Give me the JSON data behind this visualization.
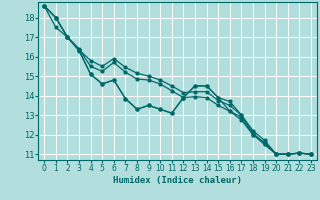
{
  "xlabel": "Humidex (Indice chaleur)",
  "background_color": "#b2dede",
  "grid_color": "#ffffff",
  "line_color": "#006868",
  "xlim": [
    -0.5,
    23.5
  ],
  "ylim": [
    10.7,
    18.8
  ],
  "xticks": [
    0,
    1,
    2,
    3,
    4,
    5,
    6,
    7,
    8,
    9,
    10,
    11,
    12,
    13,
    14,
    15,
    16,
    17,
    18,
    19,
    20,
    21,
    22,
    23
  ],
  "yticks": [
    11,
    12,
    13,
    14,
    15,
    16,
    17,
    18
  ],
  "line1_x": [
    0,
    1,
    2,
    3,
    4,
    5,
    6,
    7,
    8,
    9,
    10,
    11,
    12,
    13,
    14,
    15,
    16,
    17,
    18,
    19,
    20,
    21,
    22,
    23
  ],
  "line1_y": [
    18.6,
    18.0,
    17.0,
    16.35,
    15.1,
    14.6,
    14.8,
    13.85,
    13.3,
    13.5,
    13.3,
    13.1,
    13.9,
    14.5,
    14.5,
    13.9,
    13.7,
    13.0,
    12.1,
    11.5,
    11.0,
    11.0,
    11.05,
    11.0
  ],
  "line2_x": [
    0,
    1,
    2,
    3,
    4,
    5,
    6,
    7,
    8,
    9,
    10,
    11,
    12,
    13,
    14,
    15,
    16,
    17,
    18,
    19,
    20,
    21,
    22,
    23
  ],
  "line2_y": [
    18.6,
    18.0,
    17.0,
    16.35,
    15.8,
    15.5,
    15.9,
    15.45,
    15.15,
    15.0,
    14.8,
    14.5,
    14.15,
    14.2,
    14.2,
    13.75,
    13.5,
    13.0,
    12.2,
    11.7,
    11.0,
    11.0,
    11.05,
    11.0
  ],
  "line3_x": [
    0,
    1,
    2,
    3,
    4,
    5,
    6,
    7,
    8,
    9,
    10,
    11,
    12,
    13,
    14,
    15,
    16,
    17,
    18,
    19,
    20,
    21,
    22,
    23
  ],
  "line3_y": [
    18.6,
    18.0,
    17.0,
    16.4,
    15.5,
    15.25,
    15.7,
    15.2,
    14.85,
    14.8,
    14.6,
    14.25,
    13.9,
    13.95,
    13.9,
    13.5,
    13.2,
    12.75,
    12.0,
    11.6,
    11.0,
    11.0,
    11.05,
    11.0
  ],
  "line4_x": [
    0,
    1,
    2,
    3,
    4,
    5,
    6,
    7,
    8,
    9,
    10,
    11,
    12,
    13,
    14,
    15,
    16,
    17,
    18,
    19,
    20,
    21,
    22,
    23
  ],
  "line4_y": [
    18.6,
    17.5,
    17.0,
    16.3,
    15.1,
    14.6,
    14.8,
    13.85,
    13.3,
    13.5,
    13.3,
    13.1,
    13.9,
    14.5,
    14.5,
    13.9,
    13.2,
    12.9,
    12.0,
    11.5,
    11.0,
    11.0,
    11.05,
    11.0
  ]
}
